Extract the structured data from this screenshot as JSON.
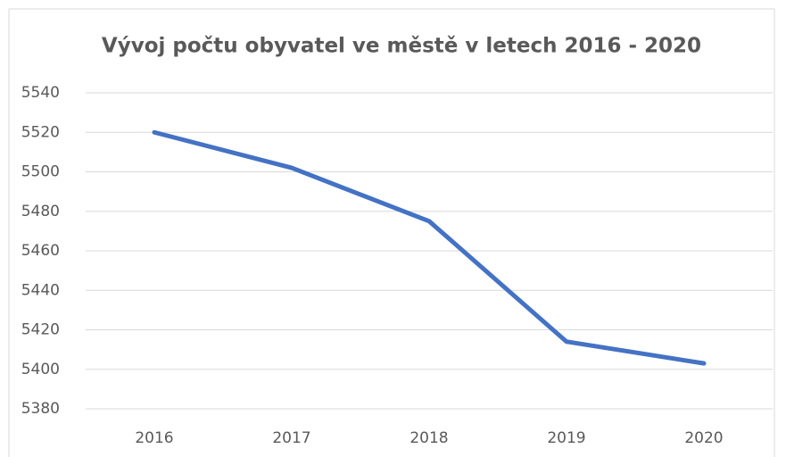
{
  "chart_data": {
    "type": "line",
    "title": "Vývoj počtu obyvatel ve městě v letech 2016 - 2020",
    "categories": [
      "2016",
      "2017",
      "2018",
      "2019",
      "2020"
    ],
    "values": [
      5520,
      5502,
      5475,
      5414,
      5403
    ],
    "color": "#4472c4",
    "ylim": [
      5380,
      5540
    ],
    "yticks": [
      5380,
      5400,
      5420,
      5440,
      5460,
      5480,
      5500,
      5520,
      5540
    ],
    "grid": true
  }
}
